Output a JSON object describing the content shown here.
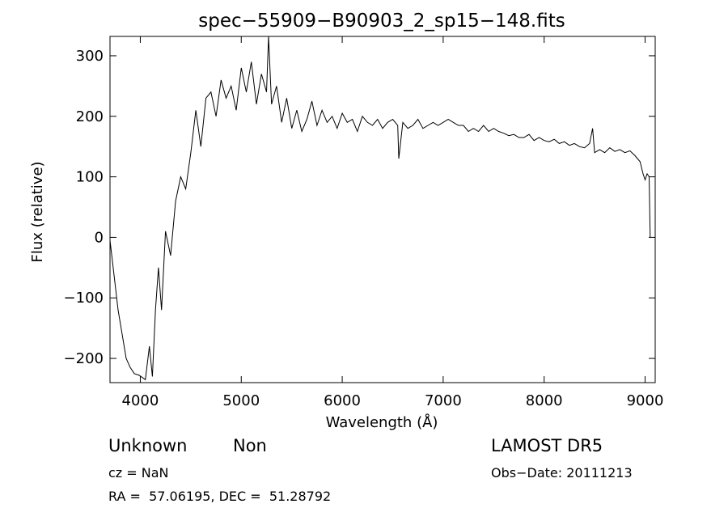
{
  "chart_data": {
    "type": "line",
    "title": "spec−55909−B90903_2_sp15−148.fits",
    "xlabel": "Wavelength (Å)",
    "ylabel": "Flux (relative)",
    "xlim": [
      3700,
      9100
    ],
    "ylim": [
      -240,
      332
    ],
    "xticks": [
      4000,
      5000,
      6000,
      7000,
      8000,
      9000
    ],
    "xtick_labels": [
      "4000",
      "5000",
      "6000",
      "7000",
      "8000",
      "9000"
    ],
    "yticks": [
      300,
      200,
      100,
      0,
      -100,
      -200
    ],
    "ytick_labels": [
      "300",
      "200",
      "100",
      "0",
      "−100",
      "−200"
    ],
    "grid": false,
    "legend": "none",
    "line_color": "#000000",
    "series": [
      {
        "x": [
          3700,
          3780,
          3860,
          3900,
          3940,
          3990,
          4050,
          4090,
          4120,
          4150,
          4180,
          4210,
          4250,
          4300,
          4350,
          4400,
          4450,
          4500,
          4550,
          4600,
          4650,
          4700,
          4750,
          4800,
          4850,
          4900,
          4950,
          5000,
          5050,
          5100,
          5150,
          5200,
          5250,
          5270,
          5300,
          5350,
          5400,
          5450,
          5500,
          5550,
          5600,
          5650,
          5700,
          5750,
          5800,
          5850,
          5900,
          5950,
          6000,
          6050,
          6100,
          6150,
          6200,
          6250,
          6300,
          6350,
          6400,
          6450,
          6500,
          6550,
          6560,
          6600,
          6650,
          6700,
          6750,
          6800,
          6850,
          6900,
          6950,
          7000,
          7050,
          7100,
          7150,
          7200,
          7250,
          7300,
          7350,
          7400,
          7450,
          7500,
          7550,
          7600,
          7650,
          7700,
          7750,
          7800,
          7850,
          7900,
          7950,
          8000,
          8050,
          8100,
          8150,
          8200,
          8250,
          8300,
          8350,
          8400,
          8450,
          8480,
          8500,
          8550,
          8600,
          8650,
          8700,
          8750,
          8800,
          8850,
          8900,
          8950,
          8980,
          9000,
          9020,
          9040,
          9050
        ],
        "y": [
          -5,
          -120,
          -200,
          -215,
          -225,
          -228,
          -235,
          -180,
          -230,
          -120,
          -50,
          -120,
          10,
          -30,
          60,
          100,
          80,
          140,
          210,
          150,
          230,
          240,
          200,
          260,
          230,
          250,
          210,
          280,
          240,
          290,
          220,
          270,
          240,
          335,
          220,
          250,
          190,
          230,
          180,
          210,
          175,
          195,
          225,
          185,
          210,
          190,
          200,
          180,
          205,
          190,
          195,
          175,
          200,
          190,
          185,
          195,
          180,
          190,
          195,
          185,
          130,
          190,
          180,
          185,
          195,
          180,
          185,
          190,
          185,
          190,
          195,
          190,
          185,
          185,
          175,
          180,
          175,
          185,
          175,
          180,
          175,
          172,
          168,
          170,
          165,
          165,
          170,
          160,
          165,
          160,
          158,
          162,
          155,
          158,
          152,
          155,
          150,
          148,
          155,
          180,
          140,
          145,
          140,
          148,
          142,
          145,
          140,
          143,
          135,
          125,
          105,
          95,
          105,
          100,
          0
        ]
      }
    ]
  },
  "info": {
    "object_class": "Unknown",
    "object_subclass": "Non",
    "survey": "LAMOST DR5",
    "cz": "cz = NaN",
    "obs_date": "Obs−Date: 20111213",
    "coords": "RA =  57.06195, DEC =  51.28792"
  }
}
